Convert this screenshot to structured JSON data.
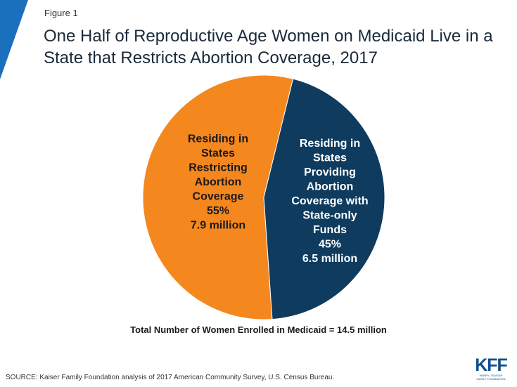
{
  "figure_label": "Figure 1",
  "title_line1": "One Half of Reproductive Age Women on Medicaid Live in a",
  "title_line2": "State that Restricts Abortion Coverage, 2017",
  "total_note": "Total Number of Women Enrolled in Medicaid = 14.5 million",
  "source": "SOURCE:  Kaiser Family Foundation analysis of 2017 American Community Survey, U.S. Census Bureau.",
  "logo": {
    "mark": "KFF",
    "sub_line1": "HENRY J KAISER",
    "sub_line2": "FAMILY FOUNDATION"
  },
  "colors": {
    "accent": "#1a70bd",
    "orange": "#f5871f",
    "navy": "#0e3b5e"
  },
  "chart_data": {
    "type": "pie",
    "title": "One Half of Reproductive Age Women on Medicaid Live in a State that Restricts Abortion Coverage, 2017",
    "slices": [
      {
        "label_lines": [
          "Residing in",
          "States",
          "Restricting",
          "Abortion",
          "Coverage"
        ],
        "percent_label": "55%",
        "count_label": "7.9 million",
        "value": 55,
        "count_millions": 7.9,
        "color": "#f5871f"
      },
      {
        "label_lines": [
          "Residing in",
          "States",
          "Providing",
          "Abortion",
          "Coverage with",
          "State-only",
          "Funds"
        ],
        "percent_label": "45%",
        "count_label": "6.5 million",
        "value": 45,
        "count_millions": 6.5,
        "color": "#0e3b5e"
      }
    ],
    "total_millions": 14.5
  }
}
